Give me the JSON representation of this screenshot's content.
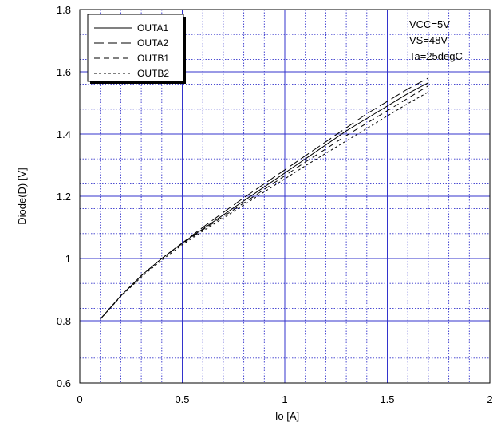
{
  "chart_data": {
    "type": "line",
    "xlabel": "Io  [A]",
    "ylabel": "Diode(D)  [V]",
    "xlim": [
      0,
      2
    ],
    "ylim": [
      0.6,
      1.8
    ],
    "x_ticks": [
      "0",
      "0.5",
      "1",
      "1.5",
      "2"
    ],
    "y_ticks": [
      "0.6",
      "0.8",
      "1",
      "1.2",
      "1.4",
      "1.6",
      "1.8"
    ],
    "grid": {
      "major": true,
      "minor": true
    },
    "legend_position": "top-left",
    "annotations": [
      "VCC=5V",
      "VS=48V",
      "Ta=25degC"
    ],
    "colors": {
      "grid_major": "#3333cc",
      "grid_minor": "#3333cc",
      "series": "#000000"
    },
    "series": [
      {
        "name": "OUTA1",
        "dash": "solid",
        "x": [
          0.1,
          0.2,
          0.3,
          0.4,
          0.5,
          0.6,
          0.7,
          0.8,
          0.9,
          1.0,
          1.1,
          1.2,
          1.3,
          1.4,
          1.5,
          1.6,
          1.7
        ],
        "y": [
          0.805,
          0.88,
          0.945,
          1.0,
          1.05,
          1.095,
          1.14,
          1.185,
          1.23,
          1.275,
          1.32,
          1.365,
          1.41,
          1.45,
          1.49,
          1.53,
          1.565
        ]
      },
      {
        "name": "OUTA2",
        "dash": "longdash",
        "x": [
          0.1,
          0.2,
          0.3,
          0.4,
          0.5,
          0.6,
          0.7,
          0.8,
          0.9,
          1.0,
          1.1,
          1.2,
          1.3,
          1.4,
          1.5,
          1.6,
          1.7
        ],
        "y": [
          0.805,
          0.88,
          0.945,
          1.0,
          1.05,
          1.1,
          1.148,
          1.195,
          1.24,
          1.285,
          1.33,
          1.375,
          1.42,
          1.465,
          1.505,
          1.545,
          1.58
        ]
      },
      {
        "name": "OUTB1",
        "dash": "dash",
        "x": [
          0.1,
          0.2,
          0.3,
          0.4,
          0.5,
          0.6,
          0.7,
          0.8,
          0.9,
          1.0,
          1.1,
          1.2,
          1.3,
          1.4,
          1.5,
          1.6,
          1.7
        ],
        "y": [
          0.805,
          0.88,
          0.945,
          1.0,
          1.048,
          1.092,
          1.135,
          1.178,
          1.222,
          1.266,
          1.31,
          1.352,
          1.395,
          1.435,
          1.475,
          1.515,
          1.555
        ]
      },
      {
        "name": "OUTB2",
        "dash": "shortdash",
        "x": [
          0.1,
          0.2,
          0.3,
          0.4,
          0.5,
          0.6,
          0.7,
          0.8,
          0.9,
          1.0,
          1.1,
          1.2,
          1.3,
          1.4,
          1.5,
          1.6,
          1.7
        ],
        "y": [
          0.805,
          0.878,
          0.94,
          0.995,
          1.044,
          1.088,
          1.13,
          1.172,
          1.214,
          1.256,
          1.298,
          1.338,
          1.378,
          1.418,
          1.458,
          1.498,
          1.535
        ]
      }
    ]
  }
}
